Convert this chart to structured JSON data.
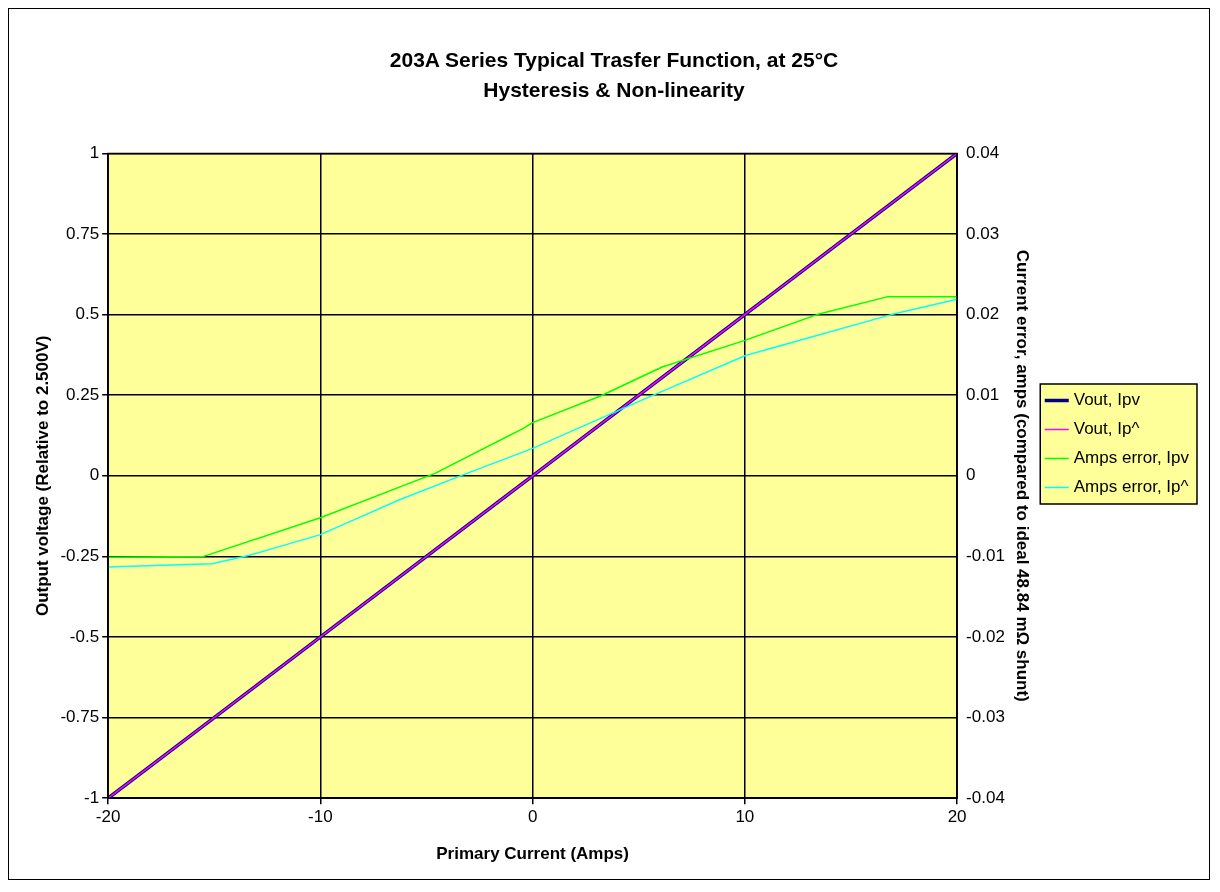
{
  "chart_data": {
    "type": "line",
    "title": "203A Series Typical Trasfer Function, at 25°C",
    "subtitle": "Hysteresis & Non-linearity",
    "xlabel": "Primary Current (Amps)",
    "ylabel": "Output voltage (Relative to 2.500V)",
    "y2label": "Current error, amps (compared to ideal 48.84 mΩ shunt)",
    "xlim": [
      -20,
      20
    ],
    "xticks": [
      -20,
      -10,
      0,
      10,
      20
    ],
    "ylim": [
      -1,
      1
    ],
    "yticks": [
      -1,
      -0.75,
      -0.5,
      -0.25,
      0,
      0.25,
      0.5,
      0.75,
      1
    ],
    "y2lim": [
      -0.04,
      0.04
    ],
    "y2ticks": [
      -0.04,
      -0.03,
      -0.02,
      -0.01,
      0,
      0.01,
      0.02,
      0.03,
      0.04
    ],
    "grid": true,
    "legend": "right",
    "marker": "none",
    "line_style": "solid",
    "series": [
      {
        "name": "Vout, Ipv",
        "color": "#000080",
        "x": [
          -20,
          0,
          20
        ],
        "values": [
          -1,
          0,
          1
        ]
      },
      {
        "name": "Vout, Ip^",
        "color": "#ff00ff",
        "x": [
          -20,
          0,
          20
        ],
        "values": [
          -1,
          0,
          1
        ]
      },
      {
        "name": "Amps error, Ipv",
        "color": "#00ff00",
        "axis": "y2",
        "x": [
          -20,
          -15.5,
          -10,
          -4.6,
          -0.5,
          0,
          3.2,
          6.1,
          10,
          13.4,
          16.7,
          20
        ],
        "values": [
          -0.0101,
          -0.01,
          -0.0052,
          0.0003,
          0.0058,
          0.0066,
          0.0099,
          0.0135,
          0.0168,
          0.02,
          0.0222,
          0.0222
        ]
      },
      {
        "name": "Amps error, Ip^",
        "color": "#00ffff",
        "axis": "y2",
        "x": [
          -20,
          -15.1,
          -13.4,
          -10,
          -6.3,
          -3.1,
          0,
          5.5,
          10,
          16.9,
          20
        ],
        "values": [
          -0.0113,
          -0.0109,
          -0.0099,
          -0.0073,
          -0.003,
          0.0003,
          0.0034,
          0.0098,
          0.0149,
          0.02,
          0.0219
        ]
      }
    ]
  }
}
